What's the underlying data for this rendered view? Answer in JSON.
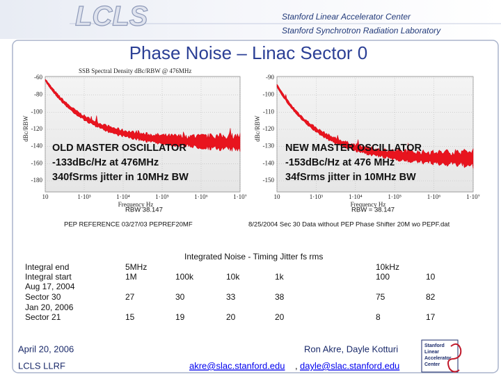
{
  "header": {
    "logo": "LCLS",
    "org_lines": [
      "Stanford Linear Accelerator Center",
      "Stanford Synchrotron Radiation Laboratory"
    ]
  },
  "title": "Phase Noise – Linac Sector 0",
  "plots": [
    {
      "plot_title": "SSB Spectral Density dBc/RBW @ 476MHz",
      "y_label": "dBc/RBW",
      "y_ticks": [
        "-60",
        "-80",
        "-100",
        "-120",
        "-140",
        "-160",
        "-180"
      ],
      "x_ticks": [
        "10",
        "1·10³",
        "1·10⁴",
        "1·10⁵",
        "1·10⁶",
        "1·10⁷"
      ],
      "x_label": "Frequency Hz",
      "rbw": "RBW   38.147",
      "caption": "PEP REFERENCE 03/27/03 PEPREF20MF",
      "overlay": [
        "OLD MASTER OSCILLATOR",
        "-133dBc/Hz at 476MHz",
        "340fSrms jitter in 10MHz BW"
      ]
    },
    {
      "plot_title": null,
      "y_label": "dBc/RBW",
      "y_ticks": [
        "-90",
        "-100",
        "-110",
        "-120",
        "-130",
        "-140",
        "-150"
      ],
      "x_ticks": [
        "10",
        "1·10³",
        "1·10⁴",
        "1·10⁵",
        "1·10⁶",
        "1·10⁷"
      ],
      "x_label": "Frequency Hz",
      "rbw": "RBW = 38.147",
      "caption": "8/25/2004  Sec 30 Data without PEP Phase Shifter 20M wo PEPF.dat",
      "overlay": [
        "NEW MASTER OSCILLATOR",
        "-153dBc/Hz at 476 MHz",
        "34fSrms jitter in 10MHz BW"
      ]
    }
  ],
  "table": {
    "title": "Integrated Noise - Timing Jitter fs rms",
    "row_labels": [
      "Integral end",
      "Integral start",
      "Aug 17, 2004",
      "Sector 30",
      "Jan 20, 2006",
      "Sector 21"
    ],
    "end": [
      "5MHz",
      "10kHz"
    ],
    "start": [
      "1M",
      "100k",
      "10k",
      "1k",
      "100",
      "10"
    ],
    "rows": [
      [
        27,
        30,
        33,
        38,
        75,
        82
      ],
      [
        15,
        19,
        20,
        20,
        8,
        17
      ]
    ]
  },
  "footer": {
    "date": "April 20, 2006",
    "group": "LCLS LLRF",
    "authors": "Ron Akre, Dayle Kotturi",
    "emails": [
      "akre@slac.stanford.edu",
      "dayle@slac.stanford.edu"
    ],
    "separator": ", ",
    "logo_lines": [
      "Stanford",
      "Linear",
      "Accelerator",
      "Center"
    ]
  }
}
